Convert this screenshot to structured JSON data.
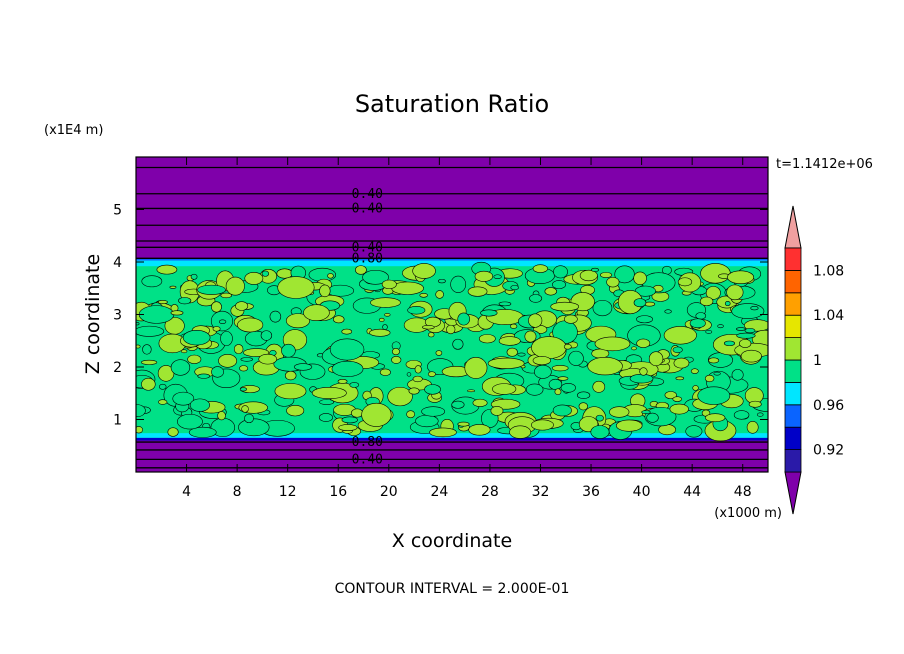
{
  "chart_data": {
    "type": "heatmap",
    "title": "Saturation Ratio",
    "xlabel": "X coordinate",
    "ylabel": "Z coordinate",
    "x_unit": "(x1000 m)",
    "y_unit": "(x1E4 m)",
    "time_label": "t=1.1412e+06",
    "footer": "CONTOUR INTERVAL = 2.000E-01",
    "xlim": [
      0,
      50
    ],
    "ylim": [
      0,
      6
    ],
    "x_ticks": [
      "4",
      "8",
      "12",
      "16",
      "20",
      "24",
      "28",
      "32",
      "36",
      "40",
      "44",
      "48"
    ],
    "y_ticks": [
      "1",
      "2",
      "3",
      "4",
      "5"
    ],
    "layers": [
      {
        "z": [
          0,
          0.65
        ],
        "value": "below 0.92",
        "color": "#7f00aa"
      },
      {
        "z": [
          0.65,
          4.0
        ],
        "value": "~0.98-1.02",
        "color": "#00e187"
      },
      {
        "z": [
          4.0,
          6.0
        ],
        "value": "below 0.92",
        "color": "#7f00aa"
      }
    ],
    "contour_labels": [
      {
        "text": "0.40",
        "x": 18.3,
        "z": 5.3
      },
      {
        "text": "0.40",
        "x": 18.3,
        "z": 5.02
      },
      {
        "text": "0.40",
        "x": 18.3,
        "z": 4.28
      },
      {
        "text": "0.80",
        "x": 18.3,
        "z": 4.07
      },
      {
        "text": "0.80",
        "x": 18.3,
        "z": 0.57
      },
      {
        "text": "0.40",
        "x": 18.3,
        "z": 0.24
      }
    ],
    "colorbar": {
      "levels": [
        {
          "label": "",
          "color": "#7f00aa"
        },
        {
          "label": "0.92",
          "color": "#2a1aa8"
        },
        {
          "label": "",
          "color": "#0000c8"
        },
        {
          "label": "0.96",
          "color": "#0a64ff"
        },
        {
          "label": "",
          "color": "#00e6ff"
        },
        {
          "label": "1",
          "color": "#00e187"
        },
        {
          "label": "",
          "color": "#a0e632"
        },
        {
          "label": "1.04",
          "color": "#e6e600"
        },
        {
          "label": "",
          "color": "#ffa000"
        },
        {
          "label": "1.08",
          "color": "#ff6400"
        },
        {
          "label": "",
          "color": "#ff3030"
        },
        {
          "label": "",
          "color": "#f0a0a0"
        }
      ]
    }
  }
}
